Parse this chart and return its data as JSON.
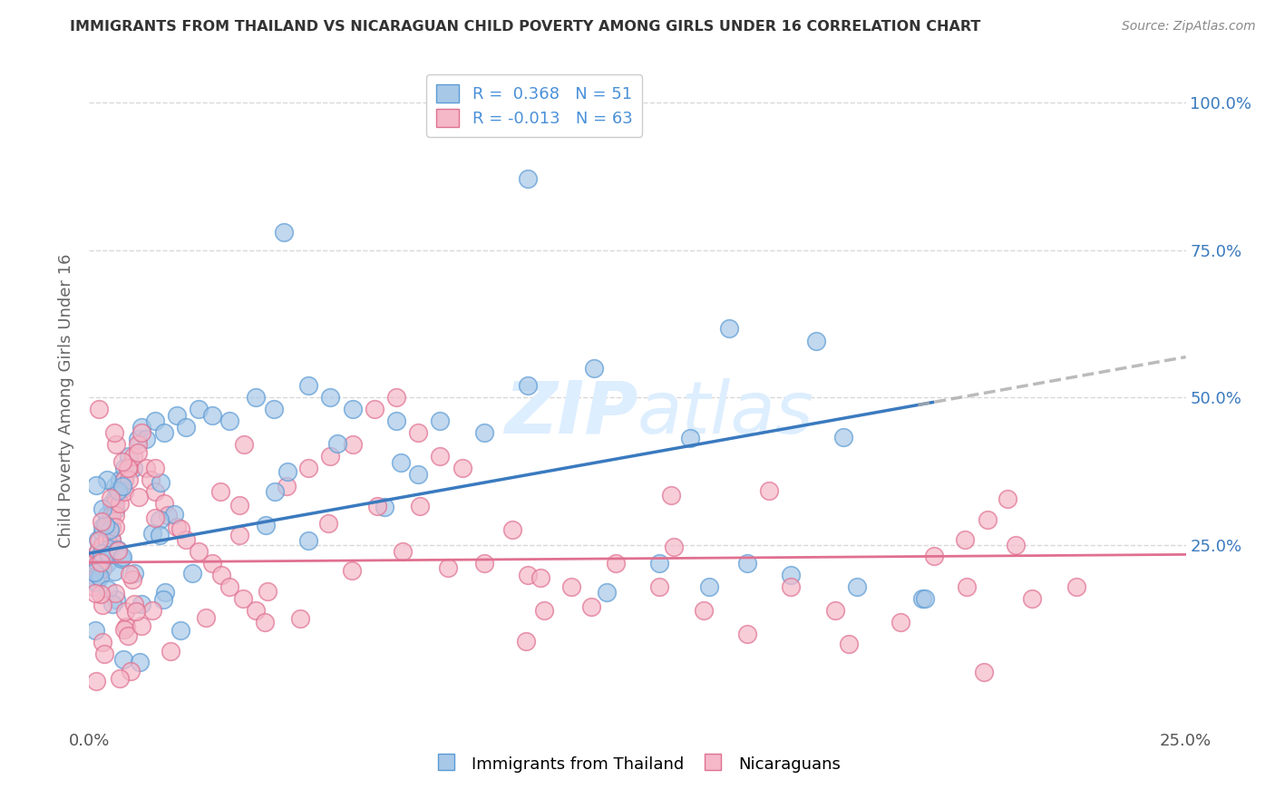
{
  "title": "IMMIGRANTS FROM THAILAND VS NICARAGUAN CHILD POVERTY AMONG GIRLS UNDER 16 CORRELATION CHART",
  "source": "Source: ZipAtlas.com",
  "ylabel": "Child Poverty Among Girls Under 16",
  "ytick_labels": [
    "100.0%",
    "75.0%",
    "50.0%",
    "25.0%"
  ],
  "ytick_values": [
    1.0,
    0.75,
    0.5,
    0.25
  ],
  "legend_label1": "Immigrants from Thailand",
  "legend_label2": "Nicaraguans",
  "legend_R1": " 0.368",
  "legend_R2": "-0.013",
  "legend_N1": "51",
  "legend_N2": "63",
  "R1": 0.368,
  "N1": 51,
  "R2": -0.013,
  "N2": 63,
  "color_blue_fill": "#a8c8e8",
  "color_blue_edge": "#5b9bd5",
  "color_pink_fill": "#f4b8c8",
  "color_pink_edge": "#e07090",
  "color_line_blue": "#3a7abf",
  "color_line_pink": "#e07090",
  "color_line_dash": "#aaaaaa",
  "color_title": "#333333",
  "color_source": "#888888",
  "color_Rval": "#4a90d9",
  "watermark_color": "#ddeeff",
  "background_color": "#ffffff",
  "grid_color": "#d8d8d8",
  "xmin": 0.0,
  "xmax": 0.25,
  "ymin": -0.06,
  "ymax": 1.05,
  "blue_x": [
    0.001,
    0.001,
    0.002,
    0.002,
    0.003,
    0.003,
    0.003,
    0.003,
    0.004,
    0.004,
    0.004,
    0.004,
    0.004,
    0.005,
    0.005,
    0.005,
    0.005,
    0.006,
    0.006,
    0.006,
    0.007,
    0.007,
    0.008,
    0.008,
    0.009,
    0.01,
    0.011,
    0.012,
    0.013,
    0.015,
    0.017,
    0.02,
    0.022,
    0.025,
    0.028,
    0.032,
    0.038,
    0.042,
    0.05,
    0.055,
    0.06,
    0.07,
    0.08,
    0.09,
    0.1,
    0.115,
    0.13,
    0.15,
    0.16,
    0.175,
    0.19
  ],
  "blue_y": [
    0.22,
    0.2,
    0.24,
    0.26,
    0.27,
    0.28,
    0.25,
    0.23,
    0.3,
    0.28,
    0.26,
    0.24,
    0.22,
    0.32,
    0.3,
    0.28,
    0.26,
    0.35,
    0.33,
    0.31,
    0.36,
    0.34,
    0.38,
    0.36,
    0.4,
    0.38,
    0.43,
    0.45,
    0.43,
    0.46,
    0.44,
    0.47,
    0.45,
    0.48,
    0.47,
    0.46,
    0.5,
    0.48,
    0.52,
    0.5,
    0.48,
    0.46,
    0.46,
    0.44,
    0.52,
    0.55,
    0.22,
    0.22,
    0.2,
    0.18,
    0.16
  ],
  "pink_x": [
    0.001,
    0.001,
    0.001,
    0.002,
    0.002,
    0.002,
    0.003,
    0.003,
    0.003,
    0.004,
    0.004,
    0.004,
    0.005,
    0.005,
    0.005,
    0.006,
    0.006,
    0.006,
    0.007,
    0.007,
    0.008,
    0.008,
    0.009,
    0.009,
    0.01,
    0.011,
    0.012,
    0.013,
    0.014,
    0.015,
    0.017,
    0.018,
    0.02,
    0.022,
    0.025,
    0.028,
    0.03,
    0.032,
    0.035,
    0.038,
    0.04,
    0.045,
    0.05,
    0.055,
    0.06,
    0.065,
    0.07,
    0.075,
    0.08,
    0.085,
    0.09,
    0.1,
    0.11,
    0.12,
    0.13,
    0.14,
    0.15,
    0.16,
    0.17,
    0.185,
    0.2,
    0.215,
    0.225
  ],
  "pink_y": [
    0.2,
    0.22,
    0.18,
    0.24,
    0.22,
    0.2,
    0.25,
    0.23,
    0.21,
    0.28,
    0.26,
    0.24,
    0.3,
    0.28,
    0.26,
    0.32,
    0.3,
    0.28,
    0.34,
    0.32,
    0.36,
    0.34,
    0.38,
    0.36,
    0.4,
    0.42,
    0.44,
    0.38,
    0.36,
    0.34,
    0.32,
    0.3,
    0.28,
    0.26,
    0.24,
    0.22,
    0.2,
    0.18,
    0.16,
    0.14,
    0.12,
    0.35,
    0.38,
    0.4,
    0.42,
    0.48,
    0.5,
    0.44,
    0.4,
    0.38,
    0.22,
    0.2,
    0.18,
    0.22,
    0.18,
    0.14,
    0.1,
    0.18,
    0.14,
    0.12,
    0.18,
    0.16,
    0.18
  ]
}
